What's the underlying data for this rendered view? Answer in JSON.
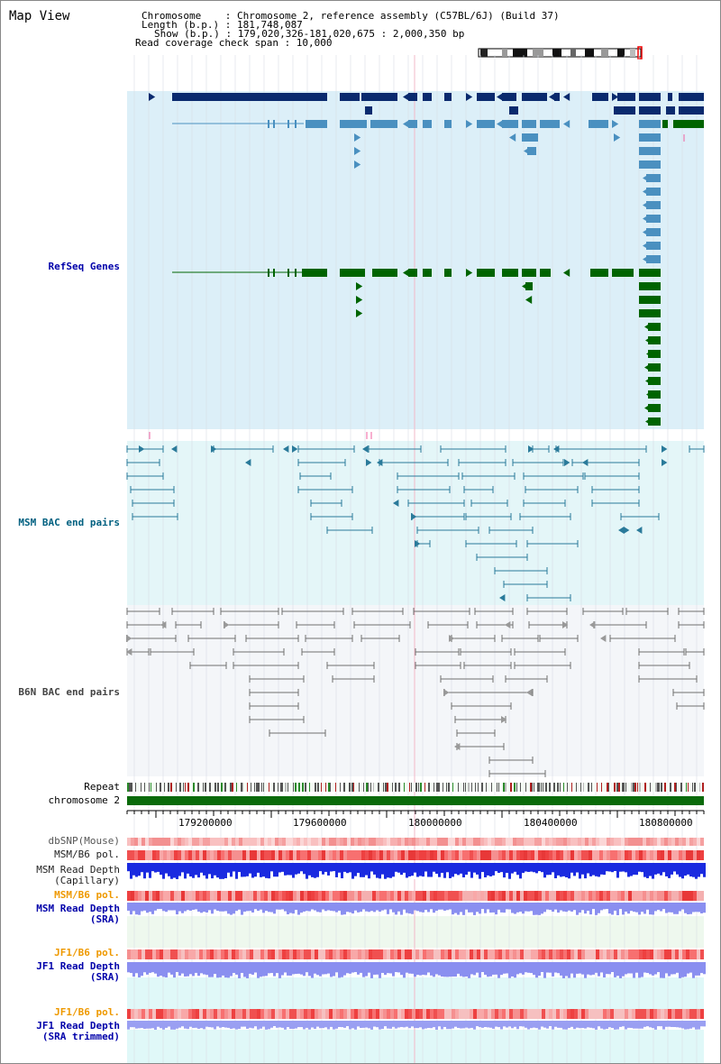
{
  "title": "Map View",
  "info": {
    "chromosome": "Chromosome    : Chromosome 2, reference assembly (C57BL/6J) (Build 37)",
    "length": "Length (b.p.) : 181,748,087",
    "show": "Show (b.p.) : 179,020,326-181,020,675 : 2,000,350 bp",
    "span": "Read coverage check span : 10,000"
  },
  "tracks": {
    "refseq": "RefSeq Genes",
    "msm_bac": "MSM BAC end pairs",
    "b6n_bac": "B6N BAC end pairs",
    "repeat": "Repeat",
    "chromosome": "chromosome 2"
  },
  "ticks": [
    "179200000",
    "179600000",
    "180000000",
    "180400000",
    "180800000"
  ],
  "bottom_tracks": [
    {
      "line1": "dbSNP(Mouse)",
      "line2": "",
      "color": "#555555"
    },
    {
      "line1": "MSM/B6 pol.",
      "line2": "",
      "color": "#222222"
    },
    {
      "line1": "MSM Read Depth",
      "line2": "(Capillary)",
      "color": "#222222"
    },
    {
      "line1": "MSM/B6 pol.",
      "line2": "",
      "color": "#ee9900"
    },
    {
      "line1": "MSM Read Depth",
      "line2": "(SRA)",
      "color": "#0000aa"
    },
    {
      "line1": "JF1/B6 pol.",
      "line2": "",
      "color": "#ee9900"
    },
    {
      "line1": "JF1 Read Depth",
      "line2": "(SRA)",
      "color": "#0000aa"
    },
    {
      "line1": "JF1/B6 pol.",
      "line2": "",
      "color": "#ee9900"
    },
    {
      "line1": "JF1 Read Depth",
      "line2": "(SRA trimmed)",
      "color": "#0000aa"
    }
  ],
  "colors": {
    "refseq_bg": "#dceff8",
    "msm_bg": "#e4f6f8",
    "b6n_bg": "#f4f6f9",
    "gene_dark": "#0a2a6e",
    "gene_mid": "#4a90c0",
    "gene_green": "#006400",
    "bac_msm": "#2a7a9a",
    "bac_b6n": "#707070"
  }
}
